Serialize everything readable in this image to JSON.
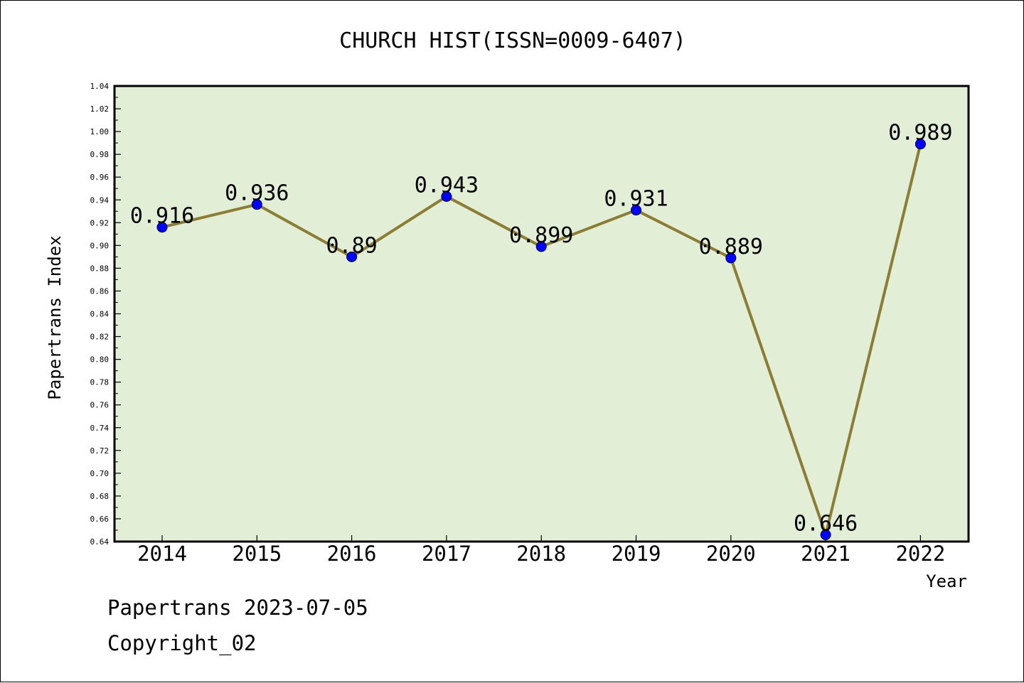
{
  "chart_data": {
    "type": "line",
    "title": "CHURCH HIST(ISSN=0009-6407)",
    "xlabel": "Year",
    "ylabel": "Papertrans Index",
    "categories": [
      "2014",
      "2015",
      "2016",
      "2017",
      "2018",
      "2019",
      "2020",
      "2021",
      "2022"
    ],
    "series": [
      {
        "values": [
          0.916,
          0.936,
          0.89,
          0.943,
          0.899,
          0.931,
          0.889,
          0.646,
          0.989
        ],
        "labels": [
          "0.916",
          "0.936",
          "0.89",
          "0.943",
          "0.899",
          "0.931",
          "0.889",
          "0.646",
          "0.989"
        ],
        "line_color": "#8b7d36",
        "marker_color": "#0000ff"
      }
    ],
    "ylim": [
      0.64,
      1.04
    ],
    "y_ticks": [
      "0.64",
      "0.66",
      "0.68",
      "0.70",
      "0.72",
      "0.74",
      "0.76",
      "0.78",
      "0.80",
      "0.82",
      "0.84",
      "0.86",
      "0.88",
      "0.90",
      "0.92",
      "0.94",
      "0.96",
      "0.98",
      "1.00",
      "1.02",
      "1.04"
    ],
    "plot_background": "#e2efd6",
    "grid": false,
    "legend": "none"
  },
  "footer": {
    "line1": "Papertrans 2023-07-05",
    "line2": "Copyright_02"
  }
}
